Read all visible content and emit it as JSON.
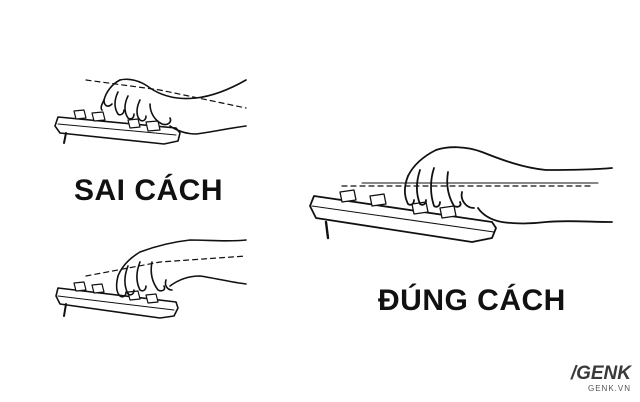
{
  "labels": {
    "wrong": "SAI CÁCH",
    "right": "ĐÚNG CÁCH"
  },
  "brand": {
    "logo": "/GENK",
    "url": "GENK.VN"
  },
  "colors": {
    "ink": "#111111",
    "background": "#ffffff",
    "brand": "#3a3a3a"
  },
  "illustrations": [
    {
      "name": "wrist-bent-down",
      "verdict": "wrong"
    },
    {
      "name": "wrist-bent-up",
      "verdict": "wrong"
    },
    {
      "name": "wrist-straight",
      "verdict": "right"
    }
  ]
}
